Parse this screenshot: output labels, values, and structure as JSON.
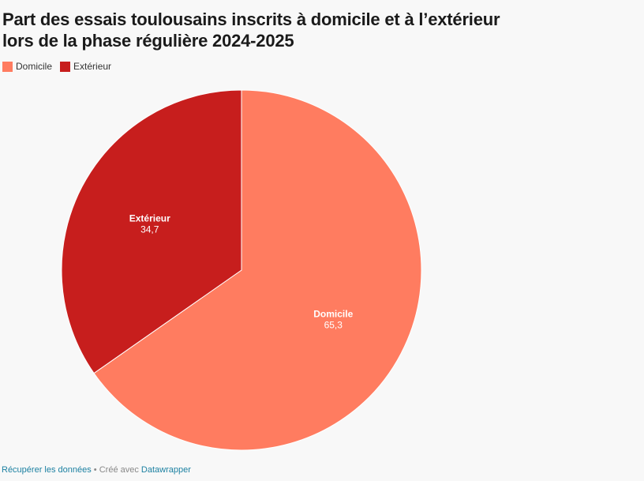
{
  "chart_data": {
    "type": "pie",
    "title": "Part des essais toulousains inscrits à domicile et à l’extérieur lors de la phase régulière 2024-2025",
    "legend_position": "top-left",
    "slices": [
      {
        "label": "Domicile",
        "value": 65.3,
        "display": "65,3",
        "color": "#ff7c60"
      },
      {
        "label": "Extérieur",
        "value": 34.7,
        "display": "34,7",
        "color": "#c71e1d"
      }
    ]
  },
  "footer": {
    "download_link": "Récupérer les données",
    "separator": " • ",
    "credit_prefix": "Créé avec ",
    "credit_link": "Datawrapper"
  }
}
